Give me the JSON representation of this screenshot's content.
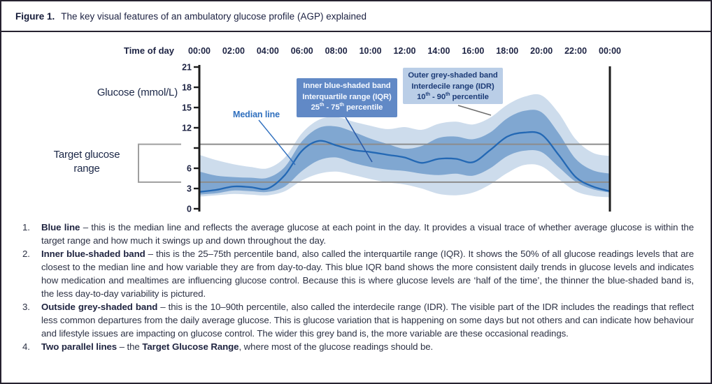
{
  "figure": {
    "label": "Figure 1.",
    "title": "The key visual features of an ambulatory glucose profile (AGP) explained"
  },
  "chart_data": {
    "type": "area",
    "title": "Ambulatory glucose profile (AGP)",
    "x_axis_label": "Time of day",
    "y_axis_label": "Glucose (mmol/L)",
    "x_tick_hours": [
      0,
      2,
      4,
      6,
      8,
      10,
      12,
      14,
      16,
      18,
      20,
      22,
      24
    ],
    "x_tick_labels": [
      "00:00",
      "02:00",
      "04:00",
      "06:00",
      "08:00",
      "10:00",
      "12:00",
      "14:00",
      "16:00",
      "18:00",
      "20:00",
      "22:00",
      "00:00"
    ],
    "y_ticks": [
      {
        "v": 0,
        "label": "0"
      },
      {
        "v": 3,
        "label": "3"
      },
      {
        "v": 6,
        "label": "6"
      },
      {
        "v": 9,
        "label": ""
      },
      {
        "v": 12,
        "label": "12"
      },
      {
        "v": 15,
        "label": "15"
      },
      {
        "v": 18,
        "label": "18"
      },
      {
        "v": 21,
        "label": "21"
      }
    ],
    "ylim": [
      0,
      21
    ],
    "xlim_hours": [
      0,
      24
    ],
    "legend_position": "annotations-on-chart",
    "grid": false,
    "hours": [
      0,
      1,
      2,
      3,
      4,
      5,
      6,
      7,
      8,
      9,
      10,
      11,
      12,
      13,
      14,
      15,
      16,
      17,
      18,
      19,
      20,
      21,
      22,
      23,
      24
    ],
    "series": [
      {
        "name": "median",
        "label": "Median line",
        "values": [
          2.5,
          2.8,
          3.3,
          3.2,
          3.0,
          5.0,
          8.6,
          10.05,
          9.4,
          8.7,
          8.4,
          8.0,
          7.6,
          6.8,
          7.4,
          7.4,
          6.9,
          8.7,
          10.7,
          11.3,
          11.0,
          8.0,
          4.7,
          3.3,
          2.6
        ]
      },
      {
        "name": "iqr_high",
        "label": "75th percentile",
        "values": [
          5.5,
          4.9,
          4.7,
          4.6,
          4.6,
          6.2,
          10.0,
          12.0,
          12.2,
          11.4,
          10.4,
          9.6,
          8.9,
          9.3,
          10.5,
          10.7,
          10.3,
          11.3,
          13.4,
          14.5,
          14.3,
          11.2,
          7.4,
          5.7,
          5.2
        ]
      },
      {
        "name": "iqr_low",
        "label": "25th percentile",
        "values": [
          2.1,
          2.3,
          2.7,
          2.6,
          2.5,
          3.3,
          5.6,
          7.2,
          7.6,
          6.8,
          6.2,
          5.8,
          5.6,
          5.2,
          5.0,
          5.2,
          4.9,
          6.0,
          7.8,
          8.6,
          8.4,
          6.2,
          4.0,
          2.9,
          2.4
        ]
      },
      {
        "name": "idr_high",
        "label": "90th percentile",
        "values": [
          8.0,
          7.2,
          6.6,
          6.2,
          6.0,
          7.6,
          11.2,
          13.2,
          13.6,
          12.9,
          12.3,
          11.8,
          12.1,
          11.7,
          12.6,
          12.9,
          12.5,
          13.5,
          15.4,
          16.6,
          16.8,
          14.2,
          10.3,
          8.3,
          7.8
        ]
      },
      {
        "name": "idr_low",
        "label": "10th percentile",
        "values": [
          1.8,
          2.0,
          2.2,
          2.1,
          2.0,
          2.6,
          4.2,
          5.2,
          5.5,
          5.0,
          4.4,
          3.9,
          3.6,
          3.0,
          2.2,
          2.0,
          2.4,
          3.6,
          5.3,
          6.5,
          6.3,
          4.4,
          2.6,
          1.9,
          1.7
        ]
      }
    ],
    "target_range": {
      "low": 3.95,
      "high": 9.55
    },
    "colors": {
      "median": "#2368b4",
      "iqr_band": "#80a7d1",
      "idr_band": "#cddcec",
      "target_line": "#8c8c8c",
      "bracket": "#9f9f9f",
      "axis": "#1c1c1c",
      "tick_text": "#1d2343"
    }
  },
  "annotations": {
    "median_label": "Median line",
    "iqr_box": {
      "lines": [
        [
          {
            "t": "Inner blue-shaded band"
          }
        ],
        [
          {
            "t": "Interquartile range (IQR)"
          }
        ],
        [
          {
            "t": "25"
          },
          {
            "sup": "th"
          },
          {
            "t": " - 75"
          },
          {
            "sup": "th"
          },
          {
            "t": " percentile"
          }
        ]
      ]
    },
    "idr_box": {
      "lines": [
        [
          {
            "t": "Outer grey-shaded band"
          }
        ],
        [
          {
            "t": "Interdecile range (IDR)"
          }
        ],
        [
          {
            "t": "10"
          },
          {
            "sup": "th"
          },
          {
            "t": " - 90"
          },
          {
            "sup": "th"
          },
          {
            "t": " percentile"
          }
        ]
      ]
    },
    "target_label_lines": [
      "Target glucose",
      "range"
    ]
  },
  "legend_list": {
    "items": [
      {
        "num": "1.",
        "segments": [
          {
            "b": "Blue line"
          },
          {
            "t": " – this is the median line and reflects the average glucose at each point in the day. It provides a visual trace of whether average glucose is within the target range and how much it swings up and down throughout the day."
          }
        ]
      },
      {
        "num": "2.",
        "segments": [
          {
            "b": "Inner blue-shaded band"
          },
          {
            "t": " – this is the 25–75th percentile band, also called the interquartile range (IQR). It shows the 50% of all glucose readings levels that are closest to the median line and how variable they are from day-to-day. This blue IQR band shows the more consistent daily trends in glucose levels and indicates how medication and mealtimes are influencing glucose control. Because this is where glucose levels are ‘half of the time’, the thinner the blue-shaded band is, the less day-to-day variability is pictured."
          }
        ]
      },
      {
        "num": "3.",
        "segments": [
          {
            "b": "Outside grey-shaded band"
          },
          {
            "t": " – this is the 10–90th percentile, also called the interdecile range (IDR). The visible part of the IDR includes the readings that reflect less common departures from the daily average glucose. This is glucose variation that is happening on some days but not others and can indicate how behaviour and lifestyle issues are impacting on glucose control. The wider this grey band is, the more variable are these occasional readings."
          }
        ]
      },
      {
        "num": "4.",
        "segments": [
          {
            "b": "Two parallel lines"
          },
          {
            "t": " – the "
          },
          {
            "b": "Target Glucose Range"
          },
          {
            "t": ", where most of the glucose readings should be."
          }
        ]
      }
    ]
  }
}
